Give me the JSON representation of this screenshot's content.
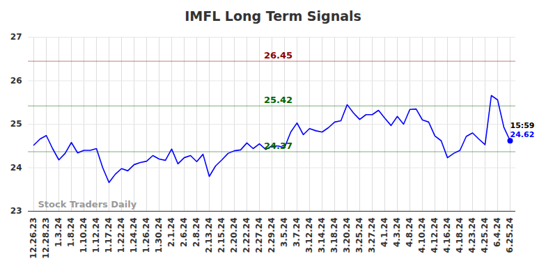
{
  "chart_data": {
    "type": "line",
    "title": "IMFL Long Term Signals",
    "categories": [
      "12.26.23",
      null,
      "12.28.23",
      null,
      "1.3.24",
      null,
      "1.8.24",
      null,
      "1.10.24",
      null,
      "1.12.24",
      null,
      "1.17.24",
      null,
      "1.22.24",
      null,
      "1.24.24",
      null,
      "1.26.24",
      null,
      "1.30.24",
      null,
      "2.1.24",
      null,
      "2.6.24",
      null,
      "2.8.24",
      null,
      "2.13.24",
      null,
      "2.15.24",
      null,
      "2.20.24",
      null,
      "2.22.24",
      null,
      "2.27.24",
      null,
      "2.29.24",
      null,
      "3.5.24",
      null,
      "3.7.24",
      null,
      "3.12.24",
      null,
      "3.14.24",
      null,
      "3.18.24",
      null,
      "3.20.24",
      null,
      "3.25.24",
      null,
      "3.27.24",
      null,
      "4.1.24",
      null,
      "4.3.24",
      null,
      "4.8.24",
      null,
      "4.10.24",
      null,
      "4.12.24",
      null,
      "4.16.24",
      null,
      "4.18.24",
      null,
      "4.23.24",
      null,
      "4.25.24",
      null,
      "6.4.24",
      null,
      "6.25.24"
    ],
    "values": [
      24.52,
      24.66,
      24.74,
      24.44,
      24.18,
      24.33,
      24.58,
      24.34,
      24.4,
      24.4,
      24.44,
      24.0,
      23.66,
      23.85,
      23.98,
      23.93,
      24.07,
      24.12,
      24.15,
      24.28,
      24.2,
      24.17,
      24.43,
      24.09,
      24.23,
      24.28,
      24.14,
      24.31,
      23.8,
      24.04,
      24.18,
      24.33,
      24.39,
      24.41,
      24.57,
      24.44,
      24.55,
      24.42,
      24.5,
      24.5,
      24.46,
      24.82,
      25.03,
      24.76,
      24.9,
      24.85,
      24.82,
      24.92,
      25.05,
      25.08,
      25.45,
      25.26,
      25.11,
      25.22,
      25.22,
      25.32,
      25.14,
      24.97,
      25.18,
      25.0,
      25.34,
      25.35,
      25.1,
      25.05,
      24.73,
      24.62,
      24.23,
      24.33,
      24.4,
      24.72,
      24.8,
      24.66,
      24.53,
      25.66,
      25.56,
      24.93,
      24.62
    ],
    "color": "#0000ff",
    "ylim": [
      23,
      27
    ],
    "yticks": [
      23,
      24,
      25,
      26,
      27
    ],
    "grid": true,
    "levels": [
      {
        "value": 26.45,
        "color": "#8b0000"
      },
      {
        "value": 25.42,
        "color": "#006400"
      },
      {
        "value": 24.37,
        "color": "#006400"
      }
    ],
    "end_label": {
      "time": "15:59",
      "value": 24.62
    },
    "watermark": "Stock Traders Daily"
  }
}
